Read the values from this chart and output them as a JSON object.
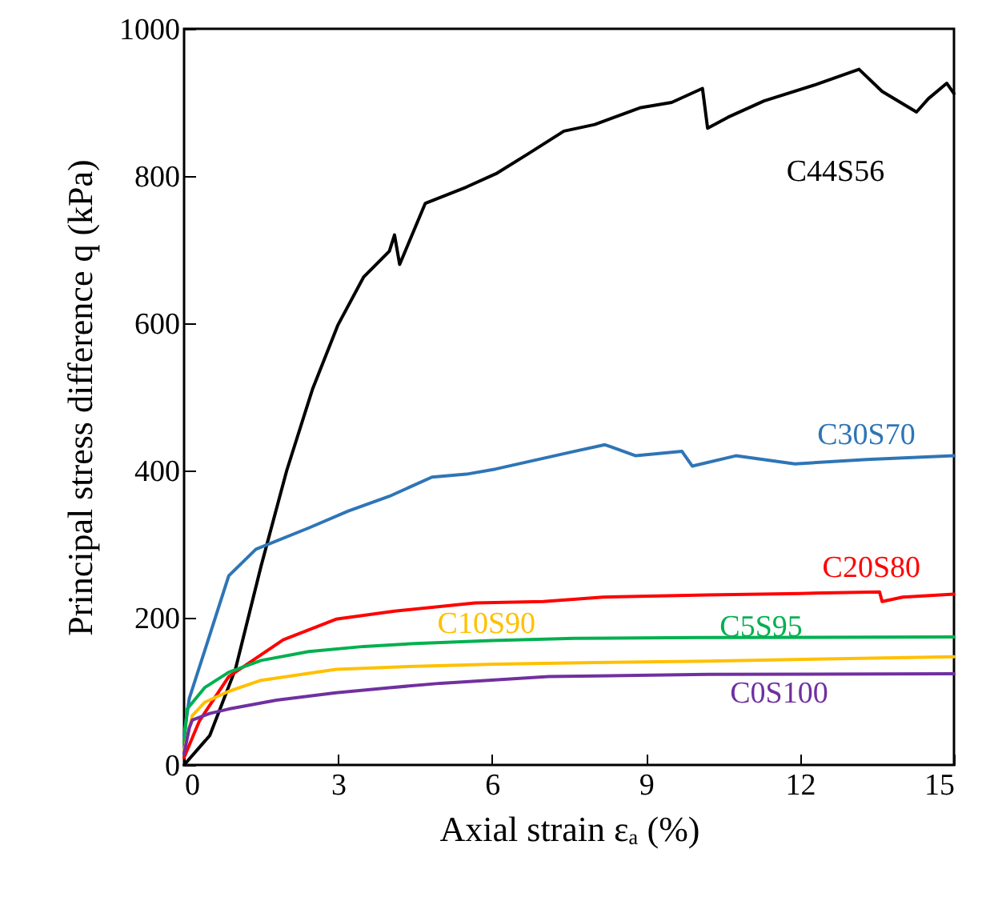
{
  "chart_data": {
    "type": "line",
    "xlabel": "Axial strain  εₐ (%)",
    "ylabel": "Principal stress difference  q (kPa)",
    "xlim": [
      0,
      15
    ],
    "xticks": [
      0,
      3,
      6,
      9,
      12,
      15
    ],
    "ylim": [
      0,
      1000
    ],
    "yticks": [
      0,
      200,
      400,
      600,
      800,
      1000
    ],
    "grid": false,
    "marker": "none",
    "line_style": "solid",
    "series": [
      {
        "name": "C44S56",
        "color": "#000000",
        "x": [
          0,
          0.5,
          1,
          1.5,
          2,
          2.5,
          3,
          3.5,
          4,
          4.1,
          4.2,
          4.7,
          5.5,
          6.1,
          6.7,
          7.4,
          8,
          8.9,
          9.5,
          10.1,
          10.2,
          10.6,
          11.3,
          12.3,
          13.15,
          13.6,
          14.27,
          14.5,
          14.86,
          15
        ],
        "values": [
          0,
          40,
          130,
          270,
          400,
          510,
          598,
          663,
          698,
          720,
          680,
          763,
          785,
          804,
          830,
          861,
          870,
          893,
          900,
          919,
          865,
          880,
          902,
          924,
          945,
          915,
          887,
          905,
          926,
          912
        ]
      },
      {
        "name": "C30S70",
        "color": "#2e75b6",
        "x": [
          0,
          0.1,
          0.47,
          0.87,
          1.4,
          2.43,
          3.2,
          4,
          4.83,
          5.5,
          6.07,
          7.6,
          8.2,
          8.8,
          9.7,
          9.9,
          10.75,
          11.9,
          13.3,
          15
        ],
        "values": [
          40,
          90,
          170,
          257,
          293,
          322,
          345,
          365,
          391,
          395,
          402,
          426,
          435,
          420,
          426,
          406,
          420,
          409,
          415,
          420
        ]
      },
      {
        "name": "C20S80",
        "color": "#ff0000",
        "x": [
          0,
          0.3,
          0.87,
          1.93,
          2.96,
          4.1,
          5.67,
          7,
          8.16,
          10.2,
          12,
          13.55,
          13.6,
          14,
          15
        ],
        "values": [
          10,
          60,
          120,
          170,
          198,
          209,
          220,
          222,
          228,
          231,
          233,
          235,
          222,
          228,
          232
        ]
      },
      {
        "name": "C5S95",
        "color": "#00b050",
        "x": [
          0,
          0.06,
          0.4,
          0.87,
          1.5,
          2.43,
          3.5,
          4.5,
          6,
          7.6,
          10,
          15
        ],
        "values": [
          30,
          76,
          105,
          126,
          142,
          154,
          161,
          165,
          169,
          172,
          173,
          174
        ]
      },
      {
        "name": "C10S90",
        "color": "#ffc000",
        "x": [
          0,
          0.16,
          0.4,
          0.87,
          1.5,
          2.96,
          4.5,
          6.07,
          8,
          10.2,
          12.5,
          15
        ],
        "values": [
          20,
          67,
          85,
          100,
          115,
          130,
          134,
          137,
          139,
          141,
          144,
          147
        ]
      },
      {
        "name": "C0S100",
        "color": "#7030a0",
        "x": [
          0,
          0.1,
          0.16,
          0.5,
          0.87,
          1.8,
          2.96,
          4,
          5,
          7.1,
          10.2,
          15
        ],
        "values": [
          15,
          50,
          61,
          70,
          76,
          88,
          98,
          105,
          111,
          120,
          123,
          124
        ]
      }
    ]
  }
}
